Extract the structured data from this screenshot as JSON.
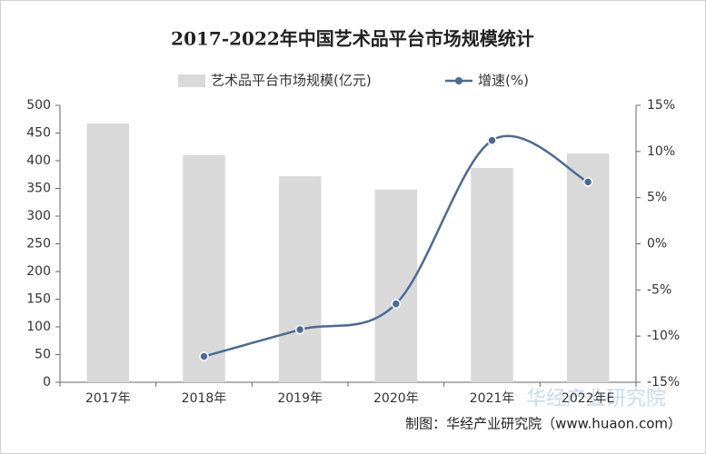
{
  "chart_data": {
    "type": "bar",
    "title": "2017-2022年中国艺术品平台市场规模统计",
    "categories": [
      "2017年",
      "2018年",
      "2019年",
      "2020年",
      "2021年",
      "2022年E"
    ],
    "series": [
      {
        "name": "艺术品平台市场规模(亿元)",
        "type": "bar",
        "color": "#d9d9d9",
        "values": [
          467,
          410,
          372,
          348,
          387,
          413
        ]
      },
      {
        "name": "增速(%)",
        "type": "line",
        "axis": "y2",
        "color": "#4a6a94",
        "values": [
          null,
          -12.2,
          -9.3,
          -6.5,
          11.2,
          6.7
        ]
      }
    ],
    "ylim": [
      0,
      500
    ],
    "yticks": [
      0,
      50,
      100,
      150,
      200,
      250,
      300,
      350,
      400,
      450,
      500
    ],
    "y2lim": [
      -15,
      15
    ],
    "y2ticks": [
      {
        "value": -15,
        "label": "-15%"
      },
      {
        "value": -10,
        "label": "-10%"
      },
      {
        "value": -5,
        "label": "-5%"
      },
      {
        "value": 0,
        "label": "0%"
      },
      {
        "value": 5,
        "label": "5%"
      },
      {
        "value": 10,
        "label": "10%"
      },
      {
        "value": 15,
        "label": "15%"
      }
    ],
    "legend": "top",
    "grid": false,
    "source": "制图：华经产业研究院（www.huaon.com）",
    "watermark": "华经产业研究院"
  }
}
